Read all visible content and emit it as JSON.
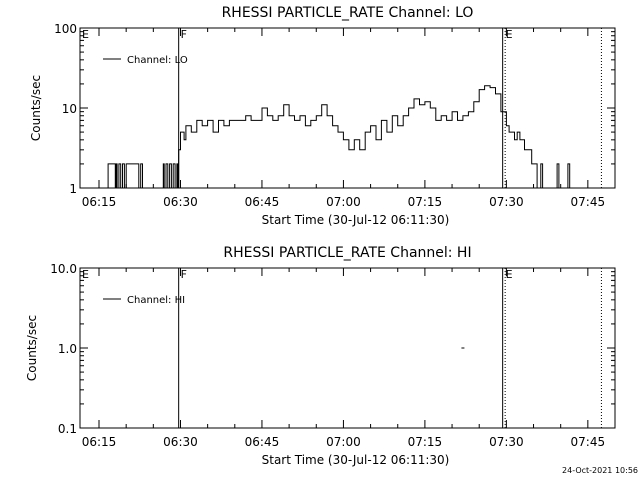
{
  "chart_data": [
    {
      "type": "line",
      "title": "RHESSI PARTICLE_RATE Channel: LO",
      "xlabel": "Start Time (30-Jul-12 06:11:30)",
      "ylabel": "Counts/sec",
      "yscale": "log",
      "ylim": [
        1,
        100
      ],
      "xlim": [
        "06:11:30",
        "07:50:00"
      ],
      "xticks": [
        "06:15",
        "06:30",
        "06:45",
        "07:00",
        "07:15",
        "07:30",
        "07:45"
      ],
      "yticks": [
        "1",
        "10",
        "100"
      ],
      "legend": "top-left",
      "flags": [
        {
          "label": "E",
          "time": "06:11:30",
          "line": "none"
        },
        {
          "label": "F",
          "time": "06:29:40",
          "line": "solid"
        },
        {
          "label": "E",
          "time": "07:29:30",
          "line": "double"
        },
        {
          "label": "",
          "time": "07:47:30",
          "line": "dotted"
        }
      ],
      "series": [
        {
          "name": "Channel: LO",
          "x": [
            "06:15:40",
            "06:16:40",
            "06:17:30",
            "06:18:00",
            "06:18:10",
            "06:18:20",
            "06:18:40",
            "06:19:00",
            "06:19:20",
            "06:19:40",
            "06:20:00",
            "06:22:00",
            "06:22:20",
            "06:22:40",
            "06:23:00",
            "06:26:30",
            "06:26:50",
            "06:27:00",
            "06:27:20",
            "06:27:40",
            "06:28:00",
            "06:28:20",
            "06:28:40",
            "06:29:00",
            "06:29:20",
            "06:29:30",
            "06:29:40",
            "06:30:00",
            "06:30:20",
            "06:30:40",
            "06:31:00",
            "06:32:00",
            "06:33:00",
            "06:34:00",
            "06:35:00",
            "06:36:00",
            "06:37:00",
            "06:38:00",
            "06:39:00",
            "06:40:00",
            "06:41:00",
            "06:42:00",
            "06:43:00",
            "06:44:00",
            "06:45:00",
            "06:46:00",
            "06:47:00",
            "06:48:00",
            "06:49:00",
            "06:50:00",
            "06:51:00",
            "06:52:00",
            "06:53:00",
            "06:54:00",
            "06:55:00",
            "06:56:00",
            "06:57:00",
            "06:58:00",
            "06:59:00",
            "07:00:00",
            "07:01:00",
            "07:02:00",
            "07:03:00",
            "07:04:00",
            "07:05:00",
            "07:06:00",
            "07:07:00",
            "07:08:00",
            "07:09:00",
            "07:10:00",
            "07:11:00",
            "07:12:00",
            "07:13:00",
            "07:14:00",
            "07:15:00",
            "07:16:00",
            "07:17:00",
            "07:18:00",
            "07:19:00",
            "07:20:00",
            "07:21:00",
            "07:22:00",
            "07:23:00",
            "07:24:00",
            "07:25:00",
            "07:26:00",
            "07:27:00",
            "07:28:00",
            "07:29:00",
            "07:30:00",
            "07:30:30",
            "07:31:00",
            "07:31:30",
            "07:32:00",
            "07:32:30",
            "07:33:00",
            "07:33:20",
            "07:34:00",
            "07:34:20",
            "07:34:40",
            "07:35:00",
            "07:35:20",
            "07:35:40",
            "07:36:00",
            "07:36:20",
            "07:36:40",
            "07:37:00",
            "07:39:00",
            "07:39:20",
            "07:39:40",
            "07:40:00",
            "07:41:00",
            "07:41:20",
            "07:41:40",
            "07:42:00"
          ],
          "y": [
            1,
            2,
            2,
            1,
            2,
            1,
            2,
            1,
            2,
            1,
            2,
            2,
            1,
            2,
            1,
            1,
            2,
            1,
            2,
            1,
            2,
            1,
            2,
            1,
            2,
            1,
            3,
            5,
            5,
            4,
            6,
            5,
            7,
            6,
            7,
            5,
            7,
            6,
            7,
            7,
            7,
            8,
            7,
            7,
            10,
            8,
            7,
            8,
            11,
            8,
            7,
            8,
            6,
            7,
            8,
            11,
            8,
            6,
            5,
            4,
            3,
            4,
            3,
            5,
            6,
            4,
            7,
            5,
            8,
            6,
            8,
            10,
            13,
            11,
            12,
            10,
            7,
            8,
            7,
            9,
            7,
            8,
            9,
            12,
            17,
            19,
            18,
            15,
            9,
            6,
            5,
            5,
            4,
            5,
            4,
            4,
            3,
            3,
            3,
            2,
            2,
            2,
            1,
            1,
            2,
            1,
            1,
            1,
            2,
            1,
            1,
            1,
            2,
            1,
            1
          ]
        }
      ]
    },
    {
      "type": "scatter",
      "title": "RHESSI PARTICLE_RATE Channel: HI",
      "xlabel": "Start Time (30-Jul-12 06:11:30)",
      "ylabel": "Counts/sec",
      "yscale": "log",
      "ylim": [
        0.1,
        10
      ],
      "xlim": [
        "06:11:30",
        "07:50:00"
      ],
      "xticks": [
        "06:15",
        "06:30",
        "06:45",
        "07:00",
        "07:15",
        "07:30",
        "07:45"
      ],
      "yticks": [
        "0.1",
        "1.0",
        "10.0"
      ],
      "legend": "top-left",
      "flags": [
        {
          "label": "E",
          "time": "06:11:30",
          "line": "none"
        },
        {
          "label": "F",
          "time": "06:29:40",
          "line": "solid"
        },
        {
          "label": "E",
          "time": "07:29:30",
          "line": "double"
        },
        {
          "label": "",
          "time": "07:47:30",
          "line": "dotted"
        }
      ],
      "series": [
        {
          "name": "Channel: HI",
          "x": [
            "07:22:00"
          ],
          "y": [
            1.0
          ]
        }
      ]
    }
  ],
  "footer": {
    "timestamp": "24-Oct-2021 10:56"
  },
  "colors": {
    "line": "#000000",
    "background": "#ffffff"
  }
}
